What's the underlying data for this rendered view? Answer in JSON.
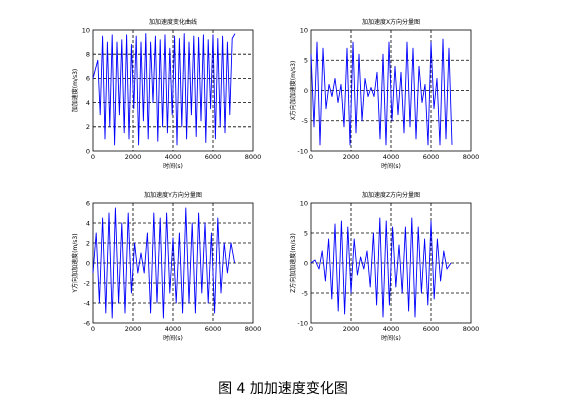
{
  "figure": {
    "caption": "图 4  加加速度变化图"
  },
  "chart_data": [
    {
      "type": "line",
      "title": "加加速度变化曲线",
      "xlabel": "时间(s)",
      "ylabel": "加加速度(m/s3)",
      "xlim": [
        0,
        8000
      ],
      "ylim": [
        0,
        10
      ],
      "xticks": [
        0,
        2000,
        4000,
        6000,
        8000
      ],
      "yticks": [
        0,
        2,
        4,
        6,
        8,
        10
      ],
      "grid": "dashed",
      "series_color": "#0000ff",
      "series": [
        {
          "x": [
            0,
            240,
            360,
            480,
            600,
            720,
            840,
            960,
            1080,
            1200,
            1320,
            1440,
            1560,
            1680,
            1800,
            1920,
            2040,
            2160,
            2280,
            2400,
            2520,
            2640,
            2760,
            2880,
            3000,
            3120,
            3240,
            3360,
            3480,
            3600,
            3720,
            3840,
            3960,
            4080,
            4200,
            4320,
            4440,
            4560,
            4680,
            4800,
            4920,
            5040,
            5160,
            5280,
            5400,
            5520,
            5640,
            5760,
            5880,
            6000,
            6120,
            6240,
            6360,
            6480,
            6600,
            6720,
            6840,
            6960,
            7100
          ],
          "y": [
            6,
            7.5,
            3,
            9.5,
            1,
            9,
            2,
            9.6,
            0.5,
            9,
            3,
            9.2,
            1.5,
            9.6,
            1,
            8.8,
            3.5,
            9.5,
            0.5,
            9,
            2.5,
            9.7,
            1,
            9,
            4,
            9.5,
            0.8,
            9.2,
            2,
            9.6,
            1.5,
            8.5,
            3,
            9.5,
            0.5,
            9.3,
            2,
            9.7,
            1,
            9,
            3,
            9.5,
            1.2,
            9.4,
            2.5,
            9.6,
            0.7,
            9.2,
            3.5,
            9.6,
            1,
            9.3,
            2,
            9.5,
            1.5,
            9,
            3,
            9.3,
            9.7
          ]
        }
      ]
    },
    {
      "type": "line",
      "title": "加加速度X方向分量图",
      "xlabel": "时间(s)",
      "ylabel": "X方向加加速度(m/s3)",
      "xlim": [
        0,
        8000
      ],
      "ylim": [
        -10,
        10
      ],
      "xticks": [
        0,
        2000,
        4000,
        6000,
        8000
      ],
      "yticks": [
        -10,
        -5,
        0,
        5,
        10
      ],
      "grid": "dashed",
      "series_color": "#0000ff",
      "series": [
        {
          "x": [
            0,
            150,
            300,
            450,
            600,
            750,
            900,
            1050,
            1200,
            1350,
            1500,
            1650,
            1800,
            1950,
            2100,
            2250,
            2400,
            2550,
            2700,
            2850,
            3000,
            3150,
            3300,
            3450,
            3600,
            3750,
            3900,
            4050,
            4200,
            4350,
            4500,
            4650,
            4800,
            4950,
            5100,
            5250,
            5400,
            5550,
            5700,
            5850,
            6000,
            6150,
            6300,
            6450,
            6600,
            6750,
            6900,
            7050
          ],
          "y": [
            6,
            -6,
            8,
            -9,
            7,
            -3,
            1,
            -1,
            2,
            -2,
            1,
            -6,
            7,
            -9,
            8,
            -7,
            6,
            -5,
            2,
            -1,
            0.5,
            -1,
            3,
            -8,
            6,
            -9,
            8,
            -5,
            4,
            -4,
            3,
            -7,
            8,
            -6,
            7,
            -8,
            4,
            -2,
            1,
            -9,
            8,
            -3,
            2,
            -9,
            8.5,
            -8,
            7,
            -9
          ]
        }
      ]
    },
    {
      "type": "line",
      "title": "加加速度Y方向分量图",
      "xlabel": "时间(s)",
      "ylabel": "Y方向加加速度(m/s3)",
      "xlim": [
        0,
        8000
      ],
      "ylim": [
        -6,
        6
      ],
      "xticks": [
        0,
        2000,
        4000,
        6000,
        8000
      ],
      "yticks": [
        -6,
        -4,
        -2,
        0,
        2,
        4,
        6
      ],
      "grid": "dashed",
      "series_color": "#0000ff",
      "series": [
        {
          "x": [
            0,
            160,
            320,
            480,
            640,
            800,
            960,
            1120,
            1280,
            1440,
            1600,
            1760,
            1920,
            2080,
            2240,
            2400,
            2560,
            2720,
            2880,
            3040,
            3200,
            3360,
            3520,
            3680,
            3840,
            4000,
            4160,
            4320,
            4480,
            4640,
            4800,
            4960,
            5120,
            5280,
            5440,
            5600,
            5760,
            5920,
            6080,
            6240,
            6400,
            6560,
            6720,
            6900,
            7080
          ],
          "y": [
            -1,
            3,
            -4,
            4.5,
            -5,
            5,
            -5.5,
            5.5,
            -4,
            4,
            -5,
            5,
            -3,
            2,
            -1,
            1,
            -1,
            3,
            -5,
            5,
            -4,
            4.5,
            -5.5,
            5,
            -3,
            2.5,
            -4,
            3,
            -5,
            5.5,
            -4,
            4,
            -5,
            5,
            -3,
            4,
            -4,
            3,
            -5,
            4.5,
            -3,
            2,
            -1,
            2,
            0
          ]
        }
      ]
    },
    {
      "type": "line",
      "title": "加加速度Z方向分量图",
      "xlabel": "时间(s)",
      "ylabel": "Z方向加加速度(m/s3)",
      "xlim": [
        0,
        8000
      ],
      "ylim": [
        -10,
        10
      ],
      "xticks": [
        0,
        2000,
        4000,
        6000,
        8000
      ],
      "yticks": [
        -10,
        -5,
        0,
        5,
        10
      ],
      "grid": "dashed",
      "series_color": "#0000ff",
      "series": [
        {
          "x": [
            0,
            200,
            400,
            560,
            720,
            880,
            1040,
            1200,
            1360,
            1520,
            1680,
            1840,
            2000,
            2160,
            2320,
            2480,
            2640,
            2800,
            2960,
            3120,
            3280,
            3440,
            3600,
            3760,
            3920,
            4080,
            4240,
            4400,
            4560,
            4720,
            4880,
            5040,
            5200,
            5360,
            5520,
            5680,
            5840,
            6000,
            6160,
            6320,
            6480,
            6640,
            6800,
            7000
          ],
          "y": [
            0,
            0.5,
            -1,
            2,
            -3,
            4,
            -6,
            6.5,
            -8,
            7,
            -8.5,
            6,
            -5,
            4,
            -2,
            1,
            -1,
            2,
            -4,
            5,
            -7,
            7.5,
            -9,
            7,
            -7,
            6,
            -4,
            3,
            -5,
            6,
            -8,
            7.5,
            -9,
            6,
            -5,
            4,
            -7,
            7,
            -6,
            4,
            -3,
            2,
            -1,
            0
          ]
        }
      ]
    }
  ]
}
